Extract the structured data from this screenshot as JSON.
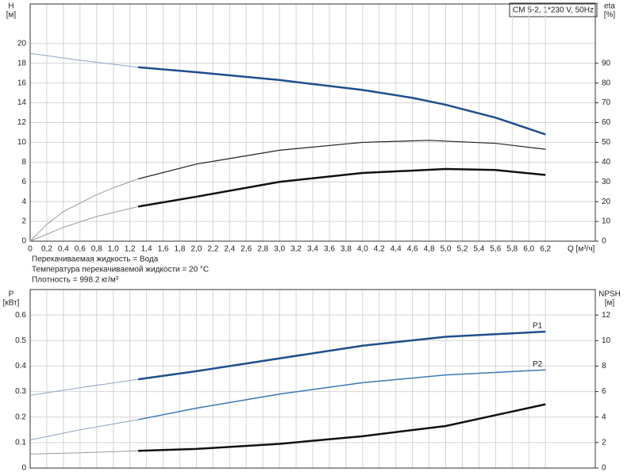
{
  "chart_data": [
    {
      "type": "line",
      "title": "CM 5-2, 1*230 V, 50Hz",
      "ylabel": "H",
      "yunit": "[м]",
      "y2label": "eta",
      "y2unit": "[%]",
      "xlabel": "Q [м³/ч]",
      "notes": [
        "Перекачиваемая жидкость = Вода",
        "Температура перекачиваемой жидкости = 20 °C",
        "Плотность = 998.2 кг/м³"
      ],
      "xlim": [
        0,
        6.8
      ],
      "ylim": [
        0,
        24
      ],
      "y2lim": [
        0,
        120
      ],
      "grid": true,
      "xticks": [
        0,
        {
          "value": 0.2,
          "label": "0,2"
        },
        {
          "value": 0.4,
          "label": "0,4"
        },
        {
          "value": 0.6,
          "label": "0,6"
        },
        {
          "value": 0.8,
          "label": "0,8"
        },
        {
          "value": 1.0,
          "label": "1,0"
        },
        {
          "value": 1.2,
          "label": "1,2"
        },
        {
          "value": 1.4,
          "label": "1,4"
        },
        {
          "value": 1.6,
          "label": "1,6"
        },
        {
          "value": 1.8,
          "label": "1,8"
        },
        {
          "value": 2.0,
          "label": "2,0"
        },
        {
          "value": 2.2,
          "label": "2,2"
        },
        {
          "value": 2.4,
          "label": "2,4"
        },
        {
          "value": 2.6,
          "label": "2,6"
        },
        {
          "value": 2.8,
          "label": "2,8"
        },
        {
          "value": 3.0,
          "label": "3,0"
        },
        {
          "value": 3.2,
          "label": "3,2"
        },
        {
          "value": 3.4,
          "label": "3,4"
        },
        {
          "value": 3.6,
          "label": "3,6"
        },
        {
          "value": 3.8,
          "label": "3,8"
        },
        {
          "value": 4.0,
          "label": "4,0"
        },
        {
          "value": 4.2,
          "label": "4,2"
        },
        {
          "value": 4.4,
          "label": "4,4"
        },
        {
          "value": 4.6,
          "label": "4,6"
        },
        {
          "value": 4.8,
          "label": "4,8"
        },
        {
          "value": 5.0,
          "label": "5,0"
        },
        {
          "value": 5.2,
          "label": "5,2"
        },
        {
          "value": 5.4,
          "label": "5,4"
        },
        {
          "value": 5.6,
          "label": "5,6"
        },
        {
          "value": 5.8,
          "label": "5,8"
        },
        {
          "value": 6.0,
          "label": "6,0"
        },
        {
          "value": 6.2,
          "label": "6,2"
        }
      ],
      "yticks": [
        0,
        2,
        4,
        6,
        8,
        10,
        12,
        14,
        16,
        18,
        20
      ],
      "y2ticks": [
        0,
        10,
        20,
        30,
        40,
        50,
        60,
        70,
        80,
        90
      ],
      "series": [
        {
          "color": "#8fa3c4",
          "line_width": 1,
          "x": [
            0,
            0.6,
            1.3
          ],
          "values": [
            19,
            18.3,
            17.6
          ]
        },
        {
          "color": "#1f4e8c",
          "line_width": 2.5,
          "x": [
            1.3,
            2,
            3,
            4,
            4.6,
            5,
            5.6,
            6.2
          ],
          "values": [
            17.6,
            17.1,
            16.3,
            15.3,
            14.5,
            13.8,
            12.5,
            10.8
          ]
        },
        {
          "color": "#9a9a9a",
          "line_width": 1,
          "axis": "y2",
          "x": [
            0,
            0.2,
            0.4,
            0.8,
            1.0,
            1.3
          ],
          "values": [
            0,
            8.5,
            15,
            23.5,
            27,
            31.5
          ]
        },
        {
          "color": "#222222",
          "line_width": 1.2,
          "axis": "y2",
          "x": [
            1.3,
            2,
            3,
            4,
            4.8,
            5.6,
            6.2
          ],
          "values": [
            31.5,
            39,
            46,
            50,
            51,
            49.5,
            46.5
          ]
        },
        {
          "color": "#9a9a9a",
          "line_width": 1,
          "axis": "y2",
          "x": [
            0,
            0.4,
            0.8,
            1.3
          ],
          "values": [
            0,
            7,
            12.5,
            17.5
          ]
        },
        {
          "color": "#111111",
          "line_width": 2.5,
          "axis": "y2",
          "x": [
            1.3,
            2,
            3,
            4,
            5,
            5.6,
            6.2
          ],
          "values": [
            17.5,
            22.5,
            30,
            34.5,
            36.5,
            36,
            33.5
          ]
        }
      ]
    },
    {
      "type": "line",
      "ylabel": "P",
      "yunit": "[кВт]",
      "y2label": "NPSH",
      "y2unit": "[м]",
      "xlim": [
        0,
        6.8
      ],
      "ylim": [
        0,
        0.7
      ],
      "y2lim": [
        0,
        14
      ],
      "grid": true,
      "xticks": [
        0,
        0.2,
        0.4,
        0.6,
        0.8,
        1.0,
        1.2,
        1.4,
        1.6,
        1.8,
        2.0,
        2.2,
        2.4,
        2.6,
        2.8,
        3.0,
        3.2,
        3.4,
        3.6,
        3.8,
        4.0,
        4.2,
        4.4,
        4.6,
        4.8,
        5.0,
        5.2,
        5.4,
        5.6,
        5.8,
        6.0,
        6.2
      ],
      "yticks": [
        0,
        0.1,
        0.2,
        0.3,
        0.4,
        0.5,
        0.6
      ],
      "y2ticks": [
        0,
        2,
        4,
        6,
        8,
        10,
        12
      ],
      "series": [
        {
          "color": "#8fa3c4",
          "line_width": 1,
          "x": [
            0,
            0.6,
            1.3
          ],
          "values": [
            0.285,
            0.315,
            0.348
          ]
        },
        {
          "name": "P1",
          "color": "#1f4e8c",
          "line_width": 2.5,
          "x": [
            1.3,
            2,
            3,
            4,
            5,
            6.2
          ],
          "values": [
            0.348,
            0.38,
            0.43,
            0.48,
            0.515,
            0.535
          ]
        },
        {
          "color": "#8fa3c4",
          "line_width": 1,
          "x": [
            0,
            0.6,
            1.3
          ],
          "values": [
            0.11,
            0.15,
            0.19
          ]
        },
        {
          "name": "P2",
          "color": "#3a78b5",
          "line_width": 1.5,
          "x": [
            1.3,
            2,
            3,
            4,
            5,
            6.2
          ],
          "values": [
            0.19,
            0.235,
            0.29,
            0.335,
            0.365,
            0.385
          ]
        },
        {
          "color": "#9a9a9a",
          "line_width": 1,
          "axis": "y2",
          "x": [
            0,
            0.6,
            1.3
          ],
          "values": [
            1.1,
            1.2,
            1.35
          ]
        },
        {
          "color": "#111111",
          "line_width": 2.5,
          "axis": "y2",
          "x": [
            1.3,
            2,
            3,
            4,
            5,
            6.2
          ],
          "values": [
            1.35,
            1.5,
            1.9,
            2.5,
            3.3,
            5.0
          ]
        }
      ]
    }
  ]
}
